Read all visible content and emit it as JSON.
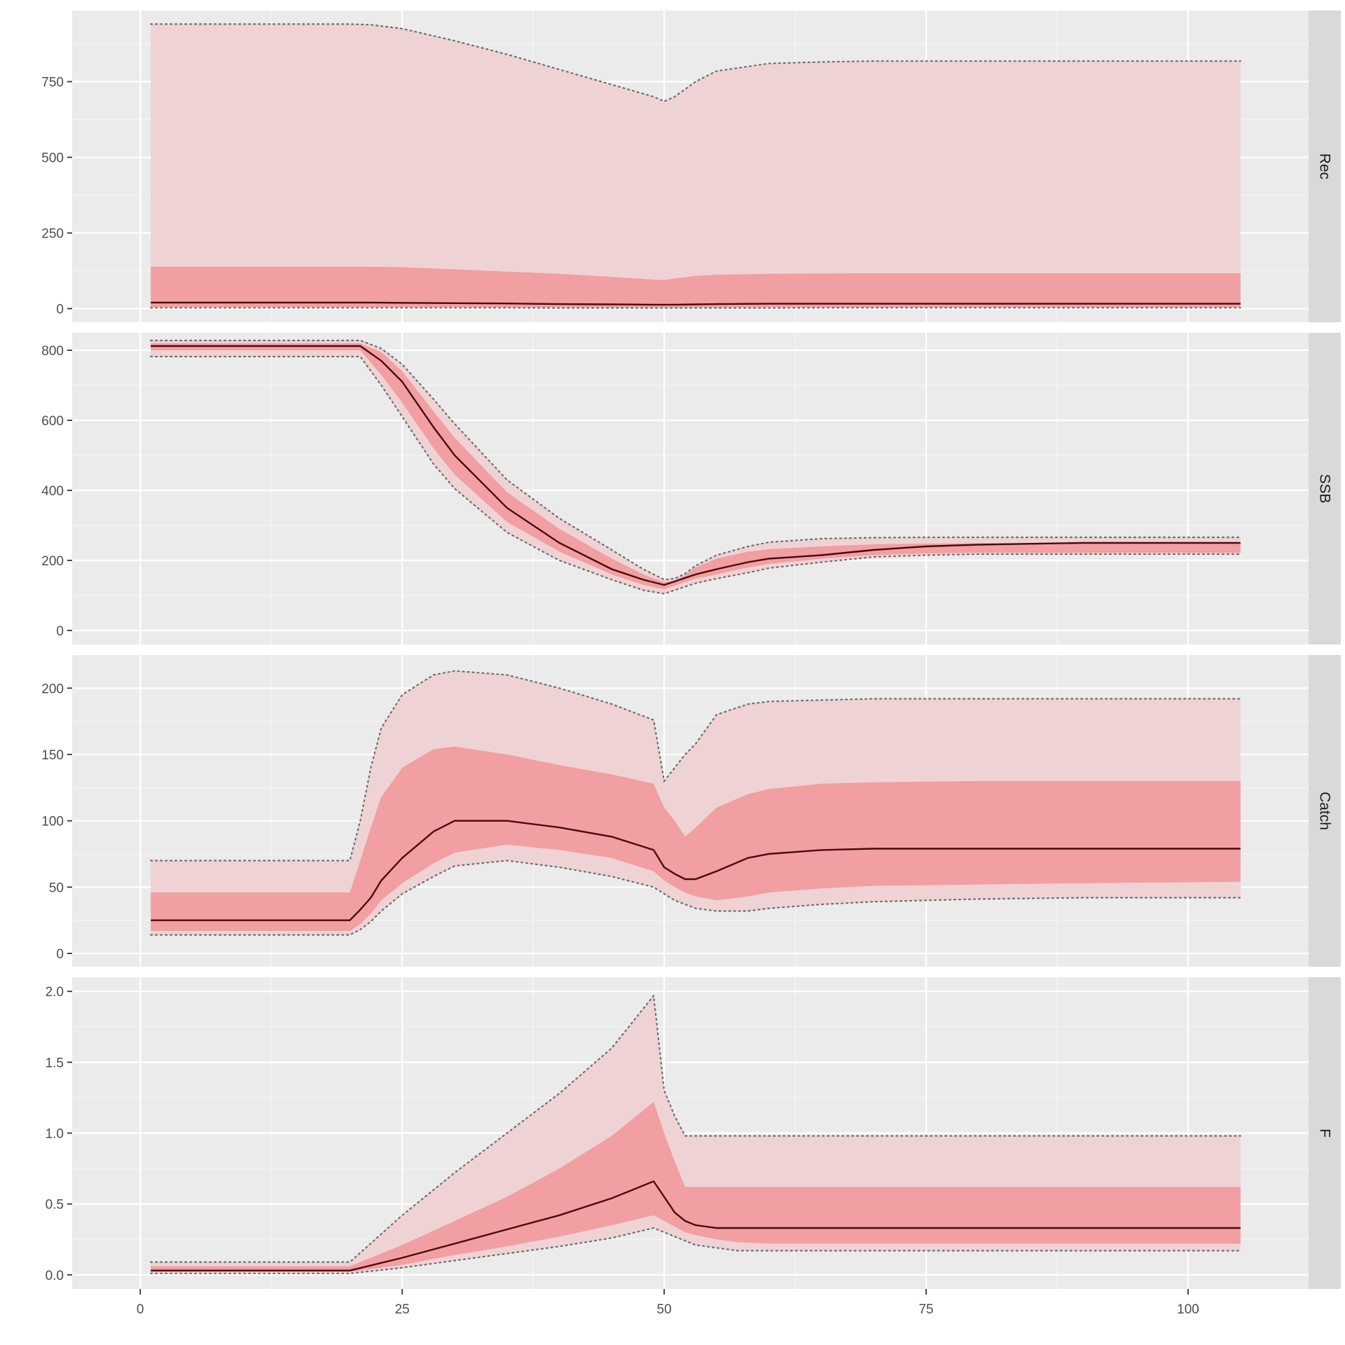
{
  "chart_data": {
    "type": "area",
    "facet_layout": "rows",
    "x_shared": true,
    "xlim": [
      -6.5,
      111.5
    ],
    "x_ticks": [
      0,
      25,
      50,
      75,
      100
    ],
    "grid": true,
    "colors": {
      "panel_bg": "#ebebeb",
      "strip_bg": "#d9d9d9",
      "grid_major": "#ffffff",
      "outer_band": "#efd2d4",
      "inner_band": "#f19fa2",
      "median_line": "#4a0a0e",
      "bound_line": "#6e6e6e"
    },
    "panels": [
      {
        "strip": "Rec",
        "ylim": [
          -45,
          985
        ],
        "y_ticks": [
          0,
          250,
          500,
          750
        ],
        "x": [
          1,
          20,
          22,
          25,
          30,
          35,
          40,
          45,
          49,
          50,
          51,
          53,
          55,
          60,
          65,
          70,
          80,
          90,
          105
        ],
        "upper_outer": [
          940,
          940,
          938,
          925,
          885,
          840,
          790,
          740,
          700,
          685,
          700,
          750,
          785,
          810,
          815,
          818,
          818,
          818,
          818
        ],
        "upper_inner": [
          138,
          138,
          138,
          137,
          130,
          122,
          115,
          105,
          96,
          94,
          100,
          108,
          112,
          115,
          116,
          117,
          117,
          117,
          117
        ],
        "median": [
          20,
          20,
          20,
          19,
          18,
          17,
          15,
          14,
          13,
          13,
          13,
          14,
          15,
          16,
          16,
          16,
          16,
          16,
          16
        ],
        "lower_inner": [
          6,
          6,
          6,
          6,
          5,
          5,
          5,
          4,
          4,
          4,
          4,
          4,
          4,
          5,
          5,
          5,
          5,
          5,
          5
        ],
        "lower_outer": [
          3,
          3,
          3,
          3,
          3,
          3,
          2,
          2,
          2,
          2,
          2,
          2,
          2,
          2,
          3,
          3,
          3,
          3,
          3
        ]
      },
      {
        "strip": "SSB",
        "ylim": [
          -40,
          850
        ],
        "y_ticks": [
          0,
          200,
          400,
          600,
          800
        ],
        "x": [
          1,
          20,
          21,
          23,
          25,
          28,
          30,
          35,
          40,
          45,
          48,
          50,
          51,
          52,
          53,
          55,
          58,
          60,
          65,
          70,
          75,
          80,
          90,
          100,
          105
        ],
        "upper_outer": [
          828,
          828,
          828,
          805,
          760,
          660,
          590,
          430,
          320,
          230,
          175,
          145,
          148,
          162,
          185,
          215,
          240,
          252,
          262,
          265,
          266,
          266,
          266,
          266,
          266
        ],
        "upper_inner": [
          820,
          820,
          820,
          795,
          740,
          625,
          550,
          395,
          290,
          205,
          160,
          138,
          142,
          158,
          180,
          205,
          225,
          232,
          240,
          246,
          248,
          249,
          250,
          250,
          250
        ],
        "median": [
          812,
          812,
          812,
          770,
          710,
          580,
          500,
          350,
          250,
          175,
          145,
          130,
          140,
          150,
          160,
          175,
          195,
          205,
          215,
          230,
          240,
          245,
          250,
          250,
          250
        ],
        "lower_inner": [
          800,
          800,
          800,
          730,
          650,
          520,
          445,
          310,
          225,
          160,
          130,
          118,
          128,
          138,
          148,
          160,
          180,
          190,
          205,
          215,
          220,
          222,
          222,
          222,
          222
        ],
        "lower_outer": [
          782,
          782,
          782,
          700,
          610,
          475,
          405,
          280,
          200,
          145,
          115,
          105,
          115,
          125,
          135,
          148,
          165,
          178,
          195,
          210,
          215,
          218,
          218,
          218,
          218
        ]
      },
      {
        "strip": "Catch",
        "ylim": [
          -10,
          225
        ],
        "y_ticks": [
          0,
          50,
          100,
          150,
          200
        ],
        "x": [
          1,
          20,
          21,
          22,
          23,
          25,
          28,
          30,
          35,
          40,
          45,
          49,
          50,
          51,
          52,
          53,
          55,
          58,
          60,
          65,
          70,
          80,
          90,
          105
        ],
        "upper_outer": [
          70,
          70,
          100,
          140,
          170,
          195,
          210,
          213,
          210,
          200,
          188,
          176,
          130,
          140,
          150,
          158,
          180,
          188,
          190,
          191,
          192,
          192,
          192,
          192
        ],
        "upper_inner": [
          46,
          46,
          70,
          95,
          118,
          140,
          154,
          156,
          150,
          142,
          135,
          128,
          110,
          100,
          88,
          95,
          110,
          120,
          124,
          128,
          129,
          130,
          130,
          130
        ],
        "median": [
          25,
          25,
          33,
          42,
          55,
          72,
          92,
          100,
          100,
          95,
          88,
          78,
          65,
          60,
          56,
          56,
          62,
          72,
          75,
          78,
          79,
          79,
          79,
          79
        ],
        "lower_inner": [
          17,
          17,
          22,
          30,
          40,
          53,
          68,
          76,
          82,
          78,
          72,
          62,
          55,
          50,
          46,
          43,
          40,
          43,
          46,
          49,
          51,
          52,
          53,
          54
        ],
        "lower_outer": [
          14,
          14,
          18,
          24,
          32,
          45,
          58,
          66,
          70,
          65,
          58,
          50,
          45,
          40,
          37,
          34,
          32,
          32,
          34,
          37,
          39,
          41,
          42,
          42
        ]
      },
      {
        "strip": "F",
        "ylim": [
          -0.1,
          2.1
        ],
        "y_ticks": [
          0.0,
          0.5,
          1.0,
          1.5,
          2.0
        ],
        "y_tick_labels": [
          "0.0",
          "0.5",
          "1.0",
          "1.5",
          "2.0"
        ],
        "x": [
          1,
          20,
          25,
          30,
          35,
          40,
          45,
          49,
          50,
          51,
          52,
          53,
          55,
          57,
          60,
          70,
          80,
          90,
          105
        ],
        "upper_outer": [
          0.09,
          0.09,
          0.42,
          0.72,
          1.0,
          1.28,
          1.6,
          1.97,
          1.3,
          1.12,
          0.98,
          0.98,
          0.98,
          0.98,
          0.98,
          0.98,
          0.98,
          0.98,
          0.98
        ],
        "upper_inner": [
          0.06,
          0.06,
          0.21,
          0.38,
          0.55,
          0.75,
          0.98,
          1.22,
          1.0,
          0.8,
          0.62,
          0.62,
          0.62,
          0.62,
          0.62,
          0.62,
          0.62,
          0.62,
          0.62
        ],
        "median": [
          0.03,
          0.03,
          0.12,
          0.22,
          0.32,
          0.42,
          0.54,
          0.66,
          0.55,
          0.44,
          0.38,
          0.35,
          0.33,
          0.33,
          0.33,
          0.33,
          0.33,
          0.33,
          0.33
        ],
        "lower_inner": [
          0.02,
          0.02,
          0.07,
          0.14,
          0.2,
          0.27,
          0.35,
          0.42,
          0.38,
          0.34,
          0.3,
          0.28,
          0.25,
          0.23,
          0.22,
          0.22,
          0.22,
          0.22,
          0.22
        ],
        "lower_outer": [
          0.01,
          0.01,
          0.05,
          0.1,
          0.15,
          0.2,
          0.26,
          0.33,
          0.3,
          0.27,
          0.24,
          0.21,
          0.19,
          0.17,
          0.17,
          0.17,
          0.17,
          0.17,
          0.17
        ]
      }
    ]
  }
}
